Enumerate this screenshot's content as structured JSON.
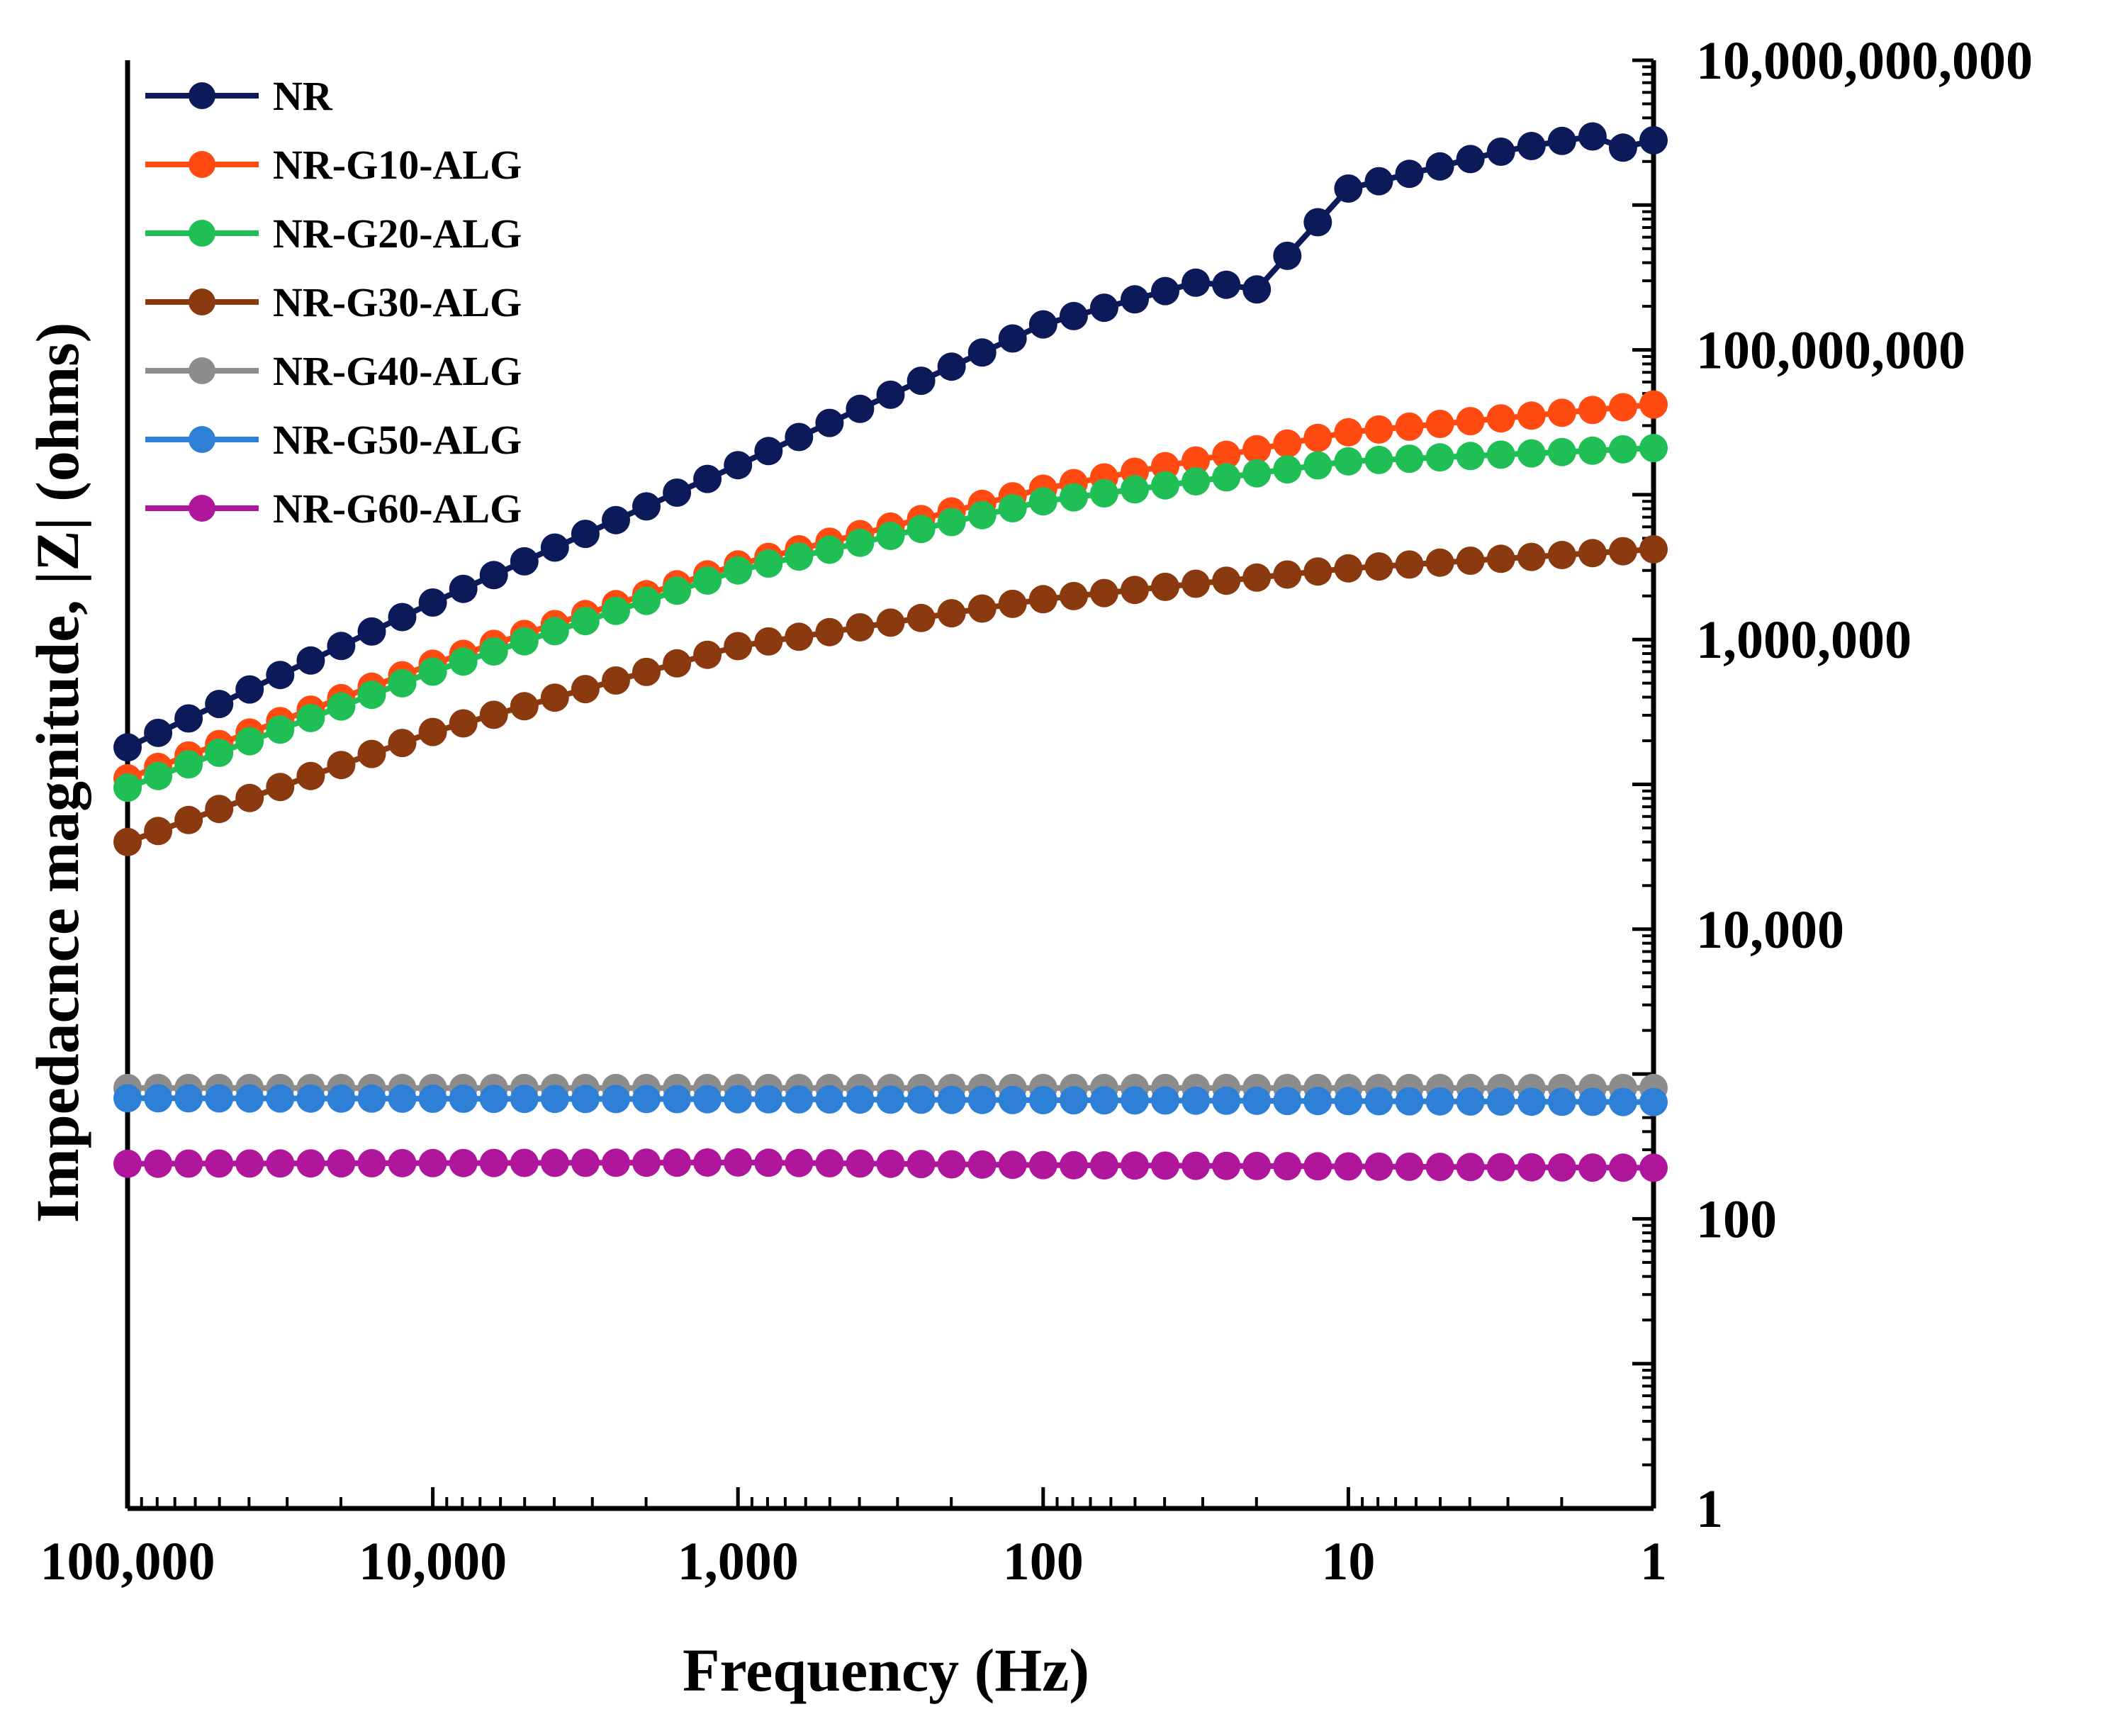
{
  "chart_data": {
    "type": "scatter",
    "mode": "line+markers",
    "title": "",
    "xlabel": "Frequency (Hz)",
    "ylabel": "Impedacnce magnitude, |Z| (ohms)",
    "x_scale": "log",
    "x_reversed": true,
    "y_scale": "log",
    "xlim": [
      100000,
      1
    ],
    "ylim": [
      1,
      10000000000
    ],
    "x_ticks": [
      100000,
      10000,
      1000,
      100,
      10,
      1
    ],
    "x_tick_labels": [
      "100,000",
      "10,000",
      "1,000",
      "100",
      "10",
      "1"
    ],
    "y_ticks": [
      1,
      100,
      10000,
      1000000,
      100000000,
      10000000000
    ],
    "y_tick_labels": [
      "1",
      "100",
      "10,000",
      "1,000,000",
      "100,000,000",
      "10,000,000,000"
    ],
    "legend_position": "top-left",
    "grid": false,
    "n_points": 51,
    "x_range": [
      100000,
      1
    ],
    "series": [
      {
        "name": "NR",
        "color": "#0d1a5a",
        "anchors": [
          [
            100000,
            180000
          ],
          [
            10000,
            1800000
          ],
          [
            1000,
            16000000
          ],
          [
            100,
            150000000
          ],
          [
            30,
            300000000
          ],
          [
            20,
            260000000
          ],
          [
            10,
            1300000000
          ],
          [
            3,
            2400000000
          ],
          [
            1.6,
            3000000000
          ],
          [
            1.2,
            2400000000
          ],
          [
            1,
            2800000000
          ]
        ]
      },
      {
        "name": "NR-G10-ALG",
        "color": "#ff4a12",
        "anchors": [
          [
            100000,
            110000
          ],
          [
            10000,
            680000
          ],
          [
            1000,
            3300000
          ],
          [
            100,
            11000000
          ],
          [
            10,
            27000000
          ],
          [
            1,
            42000000
          ]
        ]
      },
      {
        "name": "NR-G20-ALG",
        "color": "#1fbf55",
        "anchors": [
          [
            100000,
            95000
          ],
          [
            10000,
            600000
          ],
          [
            1000,
            3000000
          ],
          [
            100,
            9000000
          ],
          [
            10,
            17000000
          ],
          [
            1,
            21000000
          ]
        ]
      },
      {
        "name": "NR-G30-ALG",
        "color": "#8b3a0f",
        "anchors": [
          [
            100000,
            40000
          ],
          [
            10000,
            230000
          ],
          [
            1000,
            900000
          ],
          [
            100,
            1900000
          ],
          [
            10,
            3100000
          ],
          [
            1,
            4200000
          ]
        ]
      },
      {
        "name": "NR-G40-ALG",
        "color": "#8c8c8c",
        "anchors": [
          [
            100000,
            800
          ],
          [
            1,
            800
          ]
        ]
      },
      {
        "name": "NR-G50-ALG",
        "color": "#2e7fd6",
        "anchors": [
          [
            100000,
            680
          ],
          [
            1000,
            670
          ],
          [
            1,
            640
          ]
        ]
      },
      {
        "name": "NR-G60-ALG",
        "color": "#b0169b",
        "anchors": [
          [
            100000,
            240
          ],
          [
            1000,
            245
          ],
          [
            100,
            235
          ],
          [
            1,
            225
          ]
        ]
      }
    ]
  }
}
